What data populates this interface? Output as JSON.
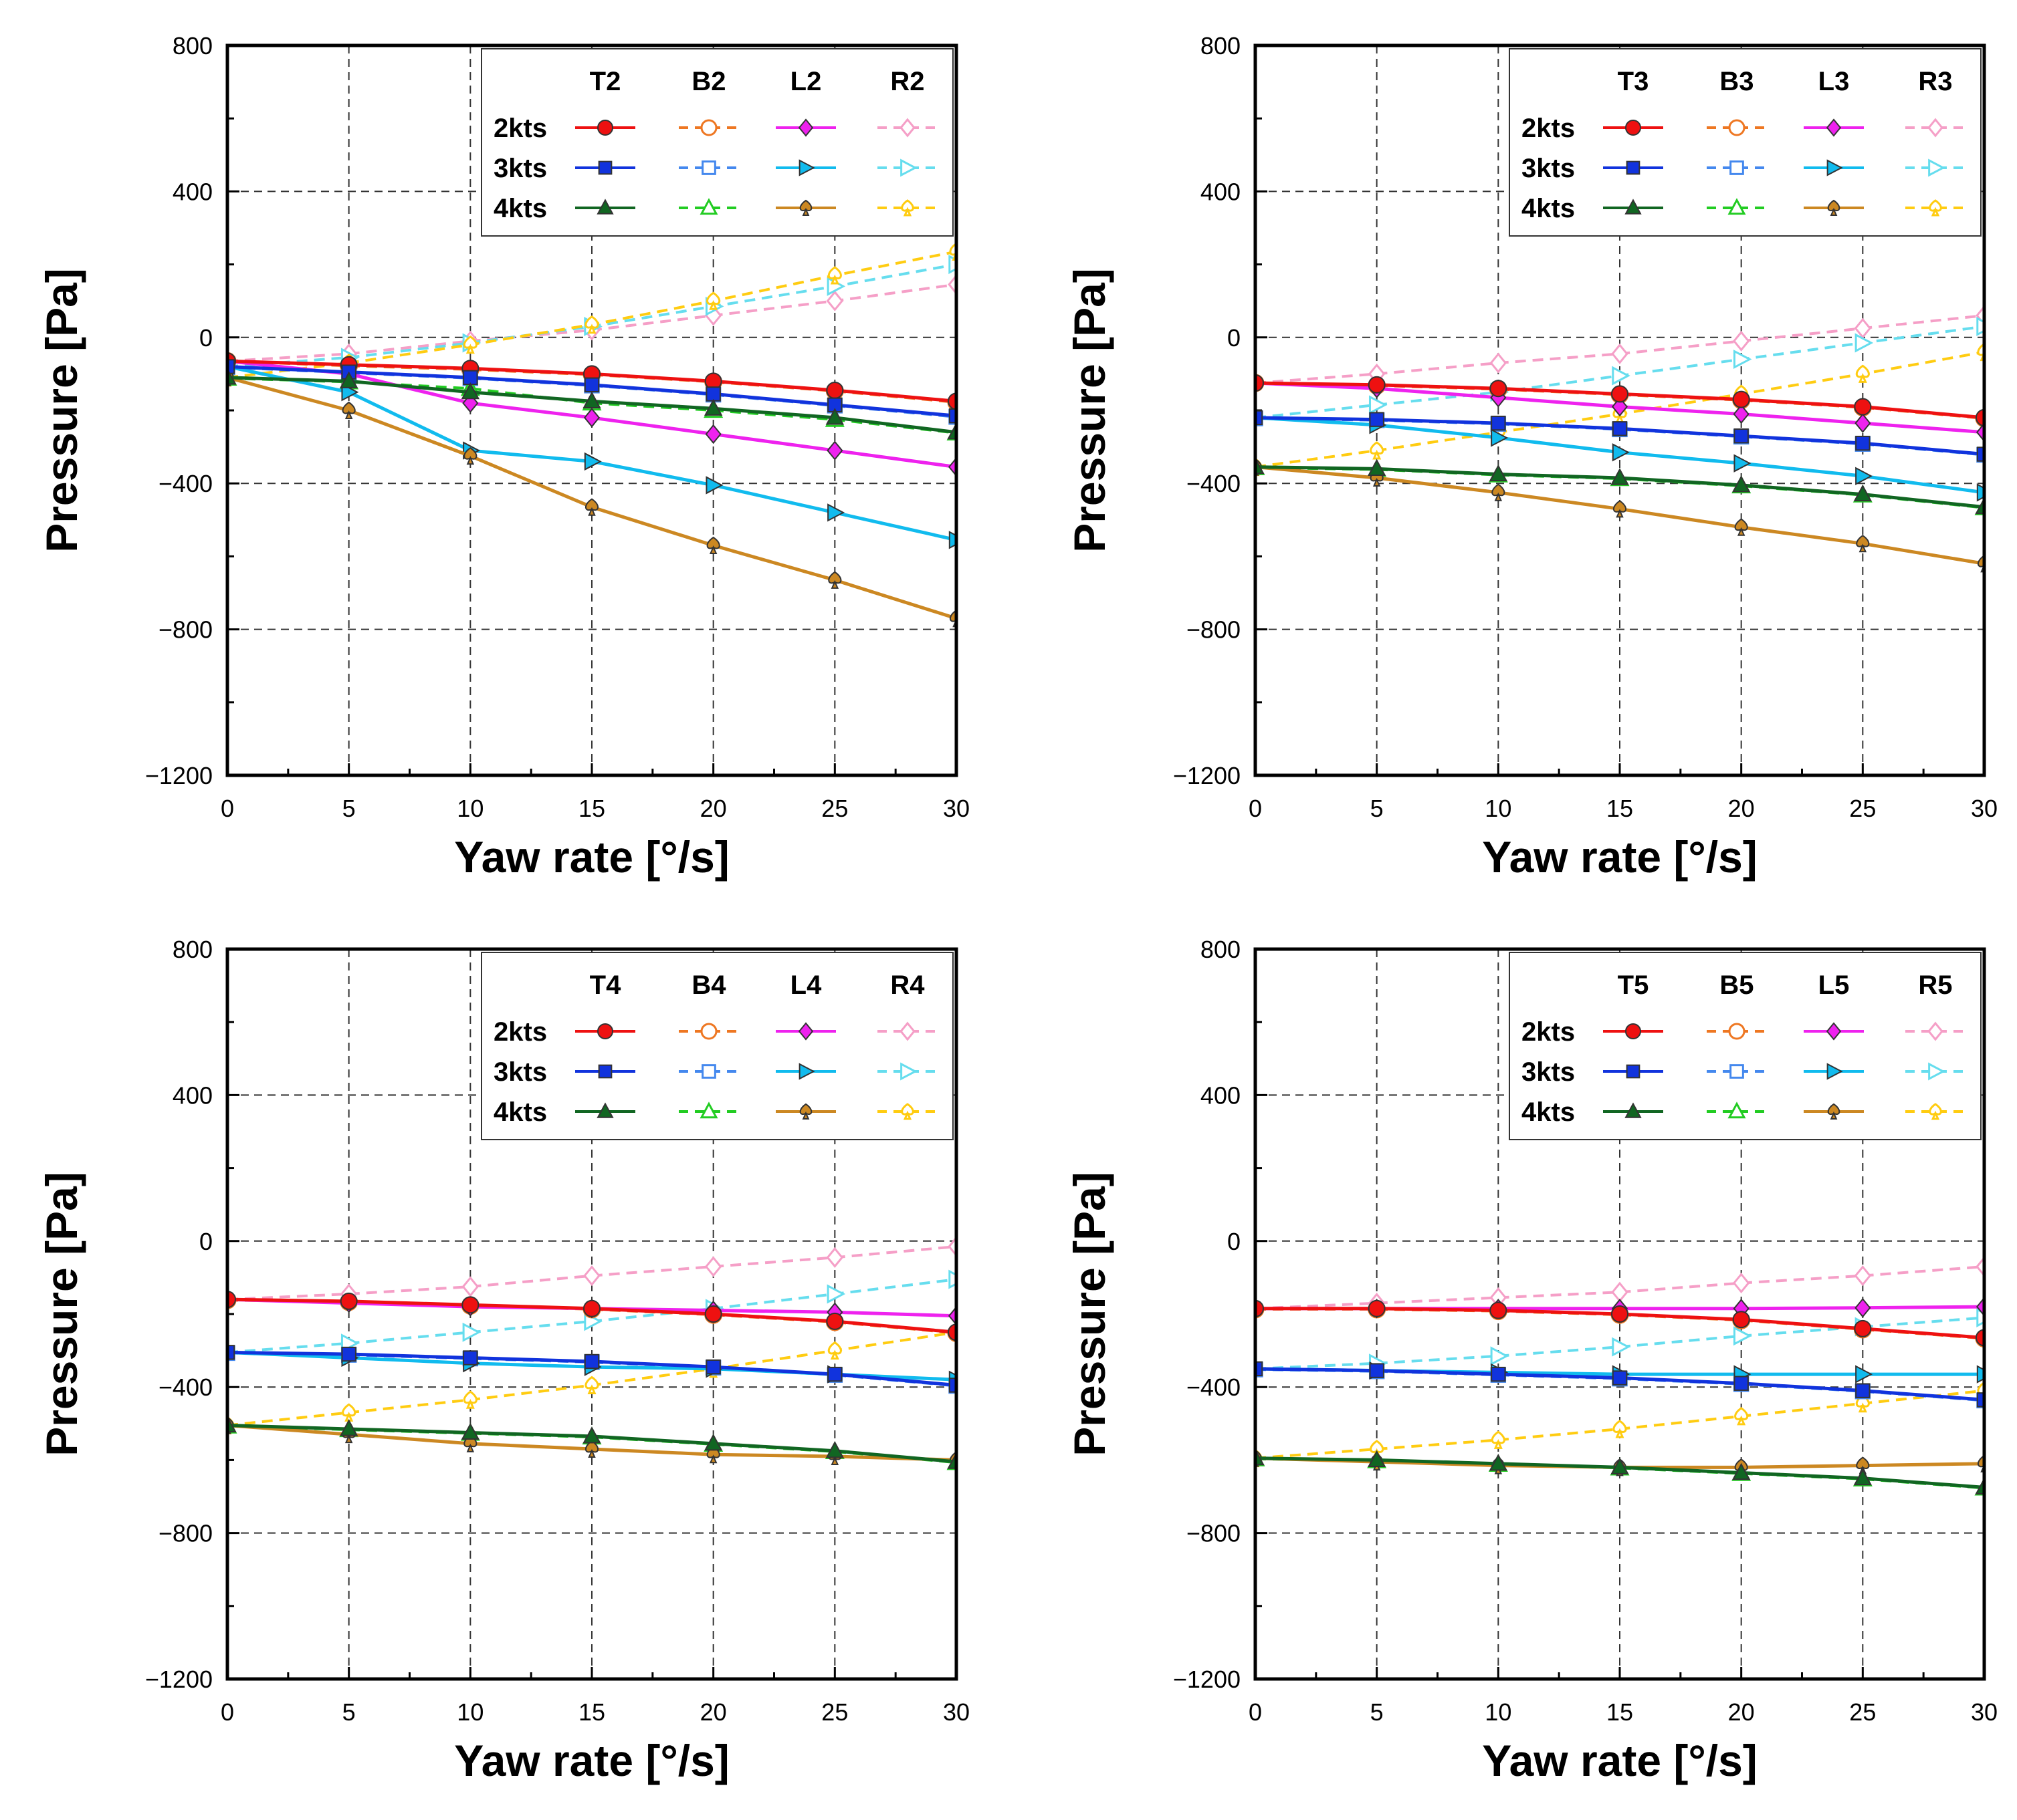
{
  "figure": "pressure-vs-yaw-rate",
  "colors": {
    "T": "#ee1111",
    "B": "#ee7722",
    "L": "#ee22ee",
    "R": "#f59fc7",
    "T3kts": "#1133dd",
    "B3kts": "#4488ee",
    "L3kts": "#11bbee",
    "R3kts": "#66ddee",
    "T4kts": "#116622",
    "B4kts": "#22cc22",
    "L4kts": "#cc8822",
    "R4kts": "#ffcc11"
  },
  "chart_data": [
    {
      "type": "line",
      "xlabel": "Yaw rate [°/s]",
      "ylabel": "Pressure [Pa]",
      "xlim": [
        0,
        30
      ],
      "ylim": [
        -1200,
        800
      ],
      "xticks": [
        "0",
        "5",
        "10",
        "15",
        "20",
        "25",
        "30"
      ],
      "yticks": [
        "800",
        "400",
        "0",
        "−400",
        "−800",
        "−1200"
      ],
      "legend": {
        "position": "top-right",
        "columns": [
          "T2",
          "B2",
          "L2",
          "R2"
        ],
        "rows": [
          "2kts",
          "3kts",
          "4kts"
        ]
      },
      "x": [
        0,
        5,
        10,
        15,
        20,
        25,
        30
      ],
      "series": [
        {
          "name": "T2 2kts",
          "values": [
            -65,
            -75,
            -85,
            -100,
            -120,
            -145,
            -175
          ]
        },
        {
          "name": "T2 3kts",
          "values": [
            -80,
            -95,
            -110,
            -130,
            -155,
            -185,
            -215
          ]
        },
        {
          "name": "T2 4kts",
          "values": [
            -110,
            -120,
            -150,
            -175,
            -195,
            -220,
            -260
          ]
        },
        {
          "name": "B2 2kts",
          "values": [
            -65,
            -78,
            -88,
            -102,
            -122,
            -147,
            -178
          ]
        },
        {
          "name": "B2 3kts",
          "values": [
            -82,
            -97,
            -112,
            -132,
            -157,
            -187,
            -218
          ]
        },
        {
          "name": "B2 4kts",
          "values": [
            -112,
            -122,
            -140,
            -180,
            -200,
            -225,
            -262
          ]
        },
        {
          "name": "L2 2kts",
          "values": [
            -65,
            -100,
            -180,
            -220,
            -265,
            -310,
            -355
          ]
        },
        {
          "name": "L2 3kts",
          "values": [
            -80,
            -150,
            -310,
            -340,
            -405,
            -480,
            -555
          ]
        },
        {
          "name": "L2 4kts",
          "values": [
            -110,
            -200,
            -325,
            -465,
            -570,
            -665,
            -770
          ]
        },
        {
          "name": "R2 2kts",
          "values": [
            -65,
            -45,
            -10,
            20,
            60,
            100,
            145
          ]
        },
        {
          "name": "R2 3kts",
          "values": [
            -80,
            -55,
            -15,
            30,
            85,
            140,
            200
          ]
        },
        {
          "name": "R2 4kts",
          "values": [
            -110,
            -70,
            -20,
            35,
            100,
            170,
            235
          ]
        }
      ]
    },
    {
      "type": "line",
      "xlabel": "Yaw rate [°/s]",
      "ylabel": "Pressure [Pa]",
      "xlim": [
        0,
        30
      ],
      "ylim": [
        -1200,
        800
      ],
      "xticks": [
        "0",
        "5",
        "10",
        "15",
        "20",
        "25",
        "30"
      ],
      "yticks": [
        "800",
        "400",
        "0",
        "−400",
        "−800",
        "−1200"
      ],
      "legend": {
        "position": "top-right",
        "columns": [
          "T3",
          "B3",
          "L3",
          "R3"
        ],
        "rows": [
          "2kts",
          "3kts",
          "4kts"
        ]
      },
      "x": [
        0,
        5,
        10,
        15,
        20,
        25,
        30
      ],
      "series": [
        {
          "name": "T3 2kts",
          "values": [
            -125,
            -130,
            -140,
            -155,
            -170,
            -190,
            -220
          ]
        },
        {
          "name": "T3 3kts",
          "values": [
            -220,
            -225,
            -235,
            -250,
            -270,
            -290,
            -320
          ]
        },
        {
          "name": "T3 4kts",
          "values": [
            -355,
            -360,
            -375,
            -385,
            -405,
            -430,
            -465
          ]
        },
        {
          "name": "B3 2kts",
          "values": [
            -125,
            -132,
            -142,
            -157,
            -172,
            -192,
            -222
          ]
        },
        {
          "name": "B3 3kts",
          "values": [
            -222,
            -227,
            -237,
            -252,
            -272,
            -292,
            -322
          ]
        },
        {
          "name": "B3 4kts",
          "values": [
            -357,
            -362,
            -377,
            -387,
            -407,
            -432,
            -467
          ]
        },
        {
          "name": "L3 2kts",
          "values": [
            -125,
            -140,
            -165,
            -190,
            -210,
            -235,
            -260
          ]
        },
        {
          "name": "L3 3kts",
          "values": [
            -220,
            -240,
            -275,
            -315,
            -345,
            -380,
            -425
          ]
        },
        {
          "name": "L3 4kts",
          "values": [
            -355,
            -385,
            -425,
            -470,
            -520,
            -565,
            -620
          ]
        },
        {
          "name": "R3 2kts",
          "values": [
            -125,
            -100,
            -70,
            -45,
            -10,
            25,
            60
          ]
        },
        {
          "name": "R3 3kts",
          "values": [
            -220,
            -185,
            -150,
            -105,
            -60,
            -15,
            30
          ]
        },
        {
          "name": "R3 4kts",
          "values": [
            -355,
            -310,
            -260,
            -210,
            -155,
            -100,
            -40
          ]
        }
      ]
    },
    {
      "type": "line",
      "xlabel": "Yaw rate [°/s]",
      "ylabel": "Pressure [Pa]",
      "xlim": [
        0,
        30
      ],
      "ylim": [
        -1200,
        800
      ],
      "xticks": [
        "0",
        "5",
        "10",
        "15",
        "20",
        "25",
        "30"
      ],
      "yticks": [
        "800",
        "400",
        "0",
        "−400",
        "−800",
        "−1200"
      ],
      "legend": {
        "position": "top-right",
        "columns": [
          "T4",
          "B4",
          "L4",
          "R4"
        ],
        "rows": [
          "2kts",
          "3kts",
          "4kts"
        ]
      },
      "x": [
        0,
        5,
        10,
        15,
        20,
        25,
        30
      ],
      "series": [
        {
          "name": "T4 2kts",
          "values": [
            -160,
            -165,
            -175,
            -185,
            -200,
            -220,
            -250
          ]
        },
        {
          "name": "T4 3kts",
          "values": [
            -305,
            -310,
            -320,
            -330,
            -345,
            -365,
            -395
          ]
        },
        {
          "name": "T4 4kts",
          "values": [
            -505,
            -515,
            -525,
            -535,
            -555,
            -575,
            -605
          ]
        },
        {
          "name": "B4 2kts",
          "values": [
            -162,
            -167,
            -177,
            -187,
            -202,
            -222,
            -252
          ]
        },
        {
          "name": "B4 3kts",
          "values": [
            -307,
            -312,
            -322,
            -332,
            -347,
            -367,
            -397
          ]
        },
        {
          "name": "B4 4kts",
          "values": [
            -507,
            -517,
            -527,
            -537,
            -557,
            -577,
            -607
          ]
        },
        {
          "name": "L4 2kts",
          "values": [
            -160,
            -170,
            -180,
            -185,
            -190,
            -195,
            -205
          ]
        },
        {
          "name": "L4 3kts",
          "values": [
            -305,
            -320,
            -335,
            -345,
            -350,
            -365,
            -380
          ]
        },
        {
          "name": "L4 4kts",
          "values": [
            -505,
            -530,
            -555,
            -570,
            -585,
            -590,
            -600
          ]
        },
        {
          "name": "R4 2kts",
          "values": [
            -160,
            -145,
            -125,
            -95,
            -70,
            -45,
            -15
          ]
        },
        {
          "name": "R4 3kts",
          "values": [
            -305,
            -280,
            -250,
            -220,
            -185,
            -145,
            -105
          ]
        },
        {
          "name": "R4 4kts",
          "values": [
            -505,
            -470,
            -435,
            -395,
            -350,
            -300,
            -250
          ]
        }
      ]
    },
    {
      "type": "line",
      "xlabel": "Yaw rate [°/s]",
      "ylabel": "Pressure [Pa]",
      "xlim": [
        0,
        30
      ],
      "ylim": [
        -1200,
        800
      ],
      "xticks": [
        "0",
        "5",
        "10",
        "15",
        "20",
        "25",
        "30"
      ],
      "yticks": [
        "800",
        "400",
        "0",
        "−400",
        "−800",
        "−1200"
      ],
      "legend": {
        "position": "top-right",
        "columns": [
          "T5",
          "B5",
          "L5",
          "R5"
        ],
        "rows": [
          "2kts",
          "3kts",
          "4kts"
        ]
      },
      "x": [
        0,
        5,
        10,
        15,
        20,
        25,
        30
      ],
      "series": [
        {
          "name": "T5 2kts",
          "values": [
            -185,
            -185,
            -190,
            -200,
            -215,
            -240,
            -265
          ]
        },
        {
          "name": "T5 3kts",
          "values": [
            -350,
            -355,
            -365,
            -375,
            -390,
            -410,
            -435
          ]
        },
        {
          "name": "T5 4kts",
          "values": [
            -595,
            -600,
            -610,
            -620,
            -635,
            -650,
            -675
          ]
        },
        {
          "name": "B5 2kts",
          "values": [
            -187,
            -187,
            -192,
            -202,
            -217,
            -242,
            -267
          ]
        },
        {
          "name": "B5 3kts",
          "values": [
            -352,
            -357,
            -367,
            -377,
            -392,
            -412,
            -437
          ]
        },
        {
          "name": "B5 4kts",
          "values": [
            -597,
            -602,
            -612,
            -622,
            -637,
            -652,
            -677
          ]
        },
        {
          "name": "L5 2kts",
          "values": [
            -185,
            -185,
            -185,
            -185,
            -185,
            -183,
            -180
          ]
        },
        {
          "name": "L5 3kts",
          "values": [
            -350,
            -355,
            -360,
            -365,
            -365,
            -365,
            -365
          ]
        },
        {
          "name": "L5 4kts",
          "values": [
            -595,
            -605,
            -615,
            -620,
            -620,
            -615,
            -610
          ]
        },
        {
          "name": "R5 2kts",
          "values": [
            -185,
            -170,
            -155,
            -140,
            -115,
            -95,
            -70
          ]
        },
        {
          "name": "R5 3kts",
          "values": [
            -350,
            -335,
            -315,
            -290,
            -260,
            -235,
            -210
          ]
        },
        {
          "name": "R5 4kts",
          "values": [
            -595,
            -570,
            -545,
            -515,
            -480,
            -445,
            -410
          ]
        }
      ]
    }
  ]
}
